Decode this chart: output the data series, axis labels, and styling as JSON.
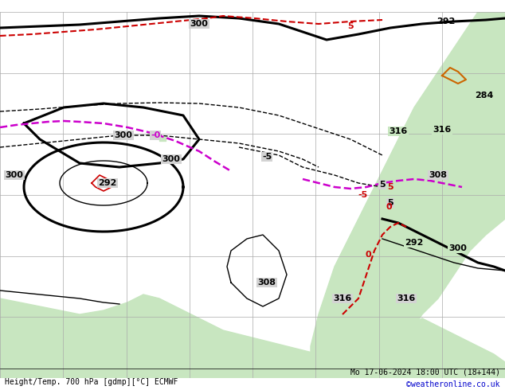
{
  "title_left": "Height/Temp. 700 hPa [gdmp][°C] ECMWF",
  "title_right": "Mo 17-06-2024 18:00 UTC (18+144)",
  "copyright": "©weatheronline.co.uk",
  "bg_ocean": "#d3d3d3",
  "bg_land_main": "#c8e6c0",
  "bg_land_alt": "#b8dbb0",
  "grid_color": "#aaaaaa",
  "contour_black": "#000000",
  "contour_red": "#cc0000",
  "contour_magenta": "#cc00cc",
  "contour_orange": "#cc6600",
  "figsize": [
    6.34,
    4.9
  ],
  "dpi": 100
}
